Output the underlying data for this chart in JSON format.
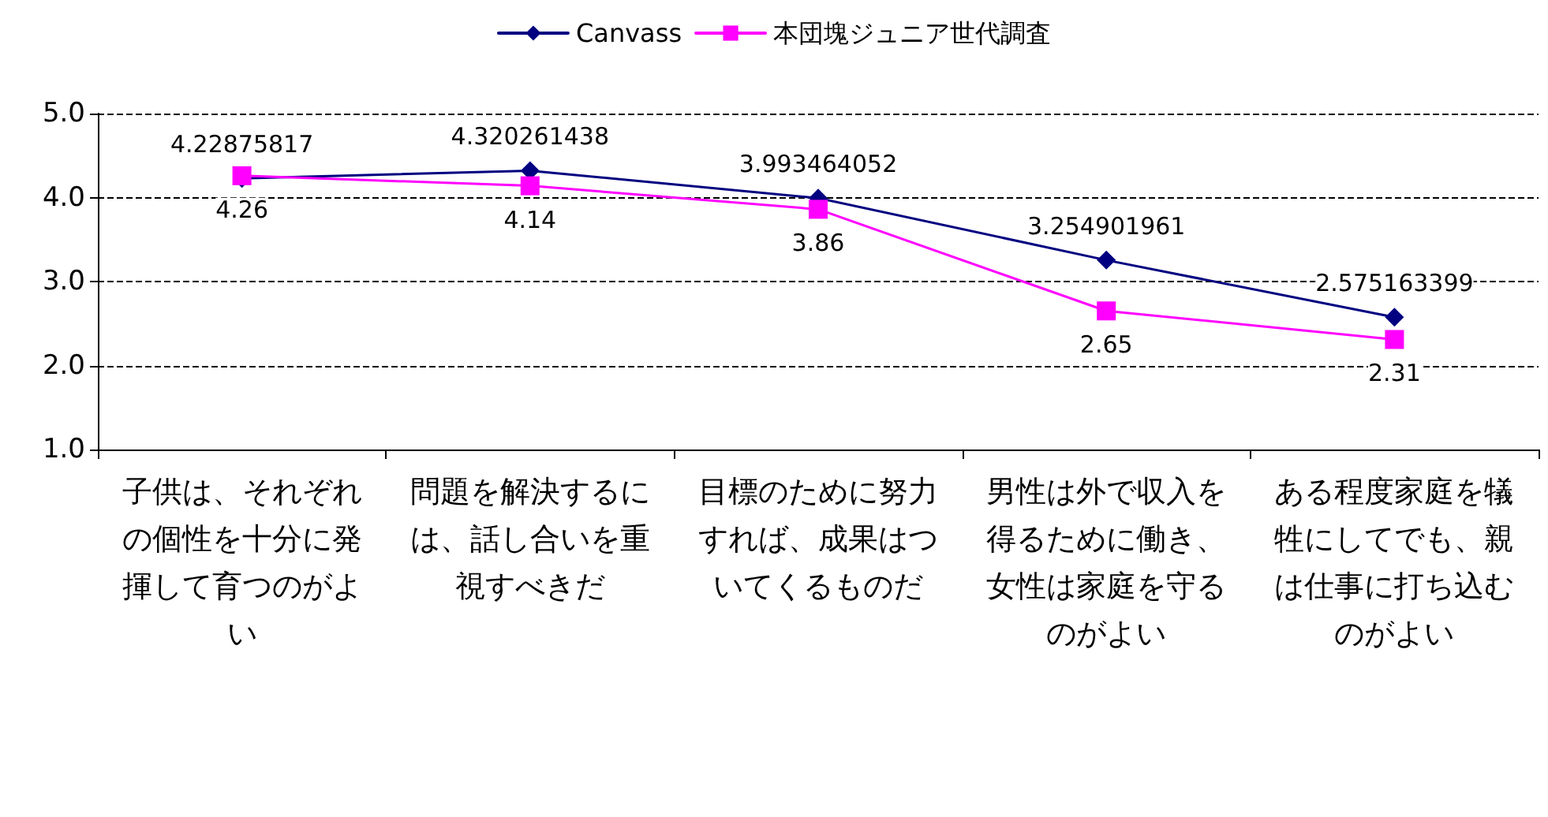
{
  "chart_data": {
    "type": "line",
    "categories": [
      "子供は、それぞれの個性を十分に発揮して育つのがよい",
      "問題を解決するには、話し合いを重視すべきだ",
      "目標のために努力すれば、成果はついてくるものだ",
      "男性は外で収入を得るために働き、女性は家庭を守るのがよい",
      "ある程度家庭を犠牲にしてでも、親は仕事に打ち込むのがよい"
    ],
    "series": [
      {
        "name": "Canvass",
        "color": "#000080",
        "marker": "diamond",
        "values": [
          4.22875817,
          4.320261438,
          3.993464052,
          3.254901961,
          2.575163399
        ]
      },
      {
        "name": "本団塊ジュニア世代調査",
        "color": "#ff00ff",
        "marker": "square",
        "values": [
          4.26,
          4.14,
          3.86,
          2.65,
          2.31
        ]
      }
    ],
    "ylim": [
      1,
      5
    ],
    "yticks": [
      {
        "value": 1,
        "label": "1.0"
      },
      {
        "value": 2,
        "label": "2.0"
      },
      {
        "value": 3,
        "label": "3.0"
      },
      {
        "value": 4,
        "label": "4.0"
      },
      {
        "value": 5,
        "label": "5.0"
      }
    ],
    "grid": "y",
    "legend": "top",
    "data_labels": true,
    "line_style": "solid"
  }
}
